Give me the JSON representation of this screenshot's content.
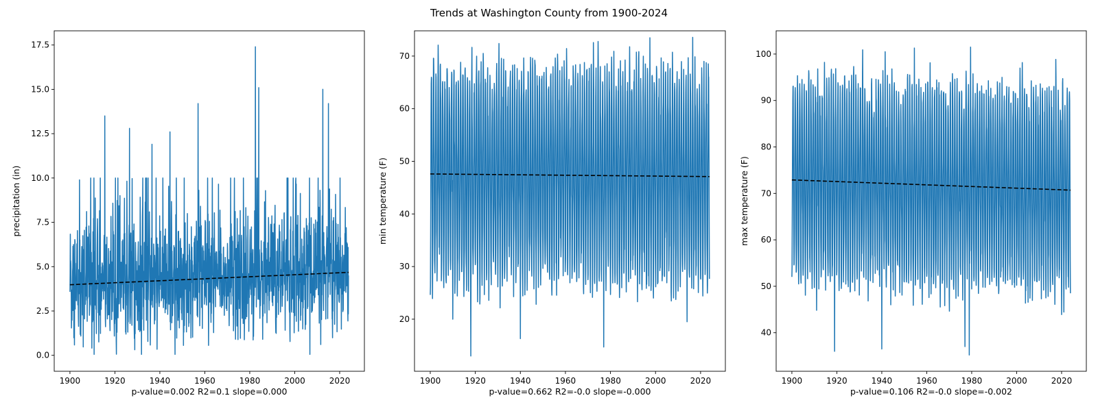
{
  "figure": {
    "title": "Trends at Washington County from 1900-2024"
  },
  "chart_data": [
    {
      "type": "line",
      "title": "",
      "ylabel": "precipitation (in)",
      "xlabel": "p-value=0.002   R2=0.1   slope=0.000",
      "xlim": [
        1893,
        2031
      ],
      "ylim": [
        -0.9,
        18.3
      ],
      "xticks": [
        "1900",
        "1920",
        "1940",
        "1960",
        "1980",
        "2000",
        "2020"
      ],
      "yticks": [
        "0.0",
        "2.5",
        "5.0",
        "7.5",
        "10.0",
        "12.5",
        "15.0",
        "17.5"
      ],
      "x_range": [
        1900,
        2024
      ],
      "value_range": [
        0.05,
        17.4
      ],
      "typical_range": [
        1.5,
        7.0
      ],
      "peaks": [
        {
          "x": 1915.5,
          "y": 13.5
        },
        {
          "x": 1926.5,
          "y": 12.8
        },
        {
          "x": 1936.5,
          "y": 11.9
        },
        {
          "x": 1944.5,
          "y": 12.6
        },
        {
          "x": 1957.0,
          "y": 14.2
        },
        {
          "x": 1982.5,
          "y": 17.4
        },
        {
          "x": 1984.0,
          "y": 15.1
        },
        {
          "x": 2012.5,
          "y": 15.0
        },
        {
          "x": 2015.0,
          "y": 14.2
        }
      ],
      "trend": {
        "x": [
          1900,
          2024
        ],
        "y": [
          3.98,
          4.68
        ],
        "style": "dashed",
        "color": "#000000"
      },
      "series_color": "#1f77b4"
    },
    {
      "type": "line",
      "title": "",
      "ylabel": "min temperature (F)",
      "xlabel": "p-value=0.662   R2=-0.0   slope=-0.000",
      "xlim": [
        1893,
        2031
      ],
      "ylim": [
        10.1,
        74.8
      ],
      "xticks": [
        "1900",
        "1920",
        "1940",
        "1960",
        "1980",
        "2000",
        "2020"
      ],
      "yticks": [
        "20",
        "30",
        "40",
        "50",
        "60",
        "70"
      ],
      "x_range": [
        1900,
        2024
      ],
      "seasonal_high": 68.5,
      "seasonal_low": 29.0,
      "value_range": [
        13.0,
        71.8
      ],
      "troughs": [
        {
          "x": 1917.8,
          "y": 13.0
        },
        {
          "x": 1940.0,
          "y": 16.3
        },
        {
          "x": 1977.0,
          "y": 14.7
        },
        {
          "x": 1910.0,
          "y": 20.0
        },
        {
          "x": 2014.0,
          "y": 19.5
        }
      ],
      "trend": {
        "x": [
          1900,
          2024
        ],
        "y": [
          47.6,
          47.1
        ],
        "style": "dashed",
        "color": "#000000"
      },
      "series_color": "#1f77b4"
    },
    {
      "type": "line",
      "title": "",
      "ylabel": "max temperature (F)",
      "xlabel": "p-value=0.106   R2=-0.0   slope=-0.002",
      "xlim": [
        1893,
        2031
      ],
      "ylim": [
        31.7,
        105.0
      ],
      "xticks": [
        "1900",
        "1920",
        "1940",
        "1960",
        "1980",
        "2000",
        "2020"
      ],
      "yticks": [
        "40",
        "50",
        "60",
        "70",
        "80",
        "90",
        "100"
      ],
      "x_range": [
        1900,
        2024
      ],
      "seasonal_high": 92.0,
      "seasonal_low": 50.0,
      "value_range": [
        35.2,
        101.5
      ],
      "peaks": [
        {
          "x": 1954.5,
          "y": 101.3
        },
        {
          "x": 1980.0,
          "y": 101.5
        },
        {
          "x": 1941.5,
          "y": 100.5
        }
      ],
      "troughs": [
        {
          "x": 1918.5,
          "y": 36.0
        },
        {
          "x": 1940.0,
          "y": 36.5
        },
        {
          "x": 1979.0,
          "y": 35.2
        },
        {
          "x": 1977.5,
          "y": 37.0
        }
      ],
      "trend": {
        "x": [
          1900,
          2024
        ],
        "y": [
          72.9,
          70.7
        ],
        "style": "dashed",
        "color": "#000000"
      },
      "series_color": "#1f77b4"
    }
  ]
}
